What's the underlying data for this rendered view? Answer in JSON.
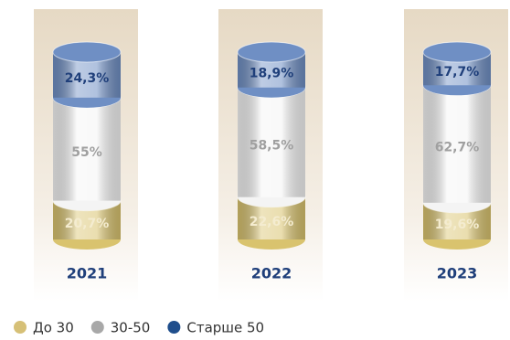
{
  "chart_data": {
    "type": "bar",
    "stacked": true,
    "categories": [
      "2021",
      "2022",
      "2023"
    ],
    "series": [
      {
        "name": "До 30",
        "color": "#d6c077",
        "values": [
          20.7,
          22.6,
          19.6
        ],
        "value_labels": [
          "20,7%",
          "22,6%",
          "19,6%"
        ]
      },
      {
        "name": "30-50",
        "color": "#a8a8a8",
        "values": [
          55,
          58.5,
          62.7
        ],
        "value_labels": [
          "55%",
          "58,5%",
          "62,7%"
        ]
      },
      {
        "name": "Старше 50",
        "color": "#1f4e8c",
        "values": [
          24.3,
          18.9,
          17.7
        ],
        "value_labels": [
          "24,3%",
          "18,9%",
          "17,7%"
        ]
      }
    ]
  }
}
